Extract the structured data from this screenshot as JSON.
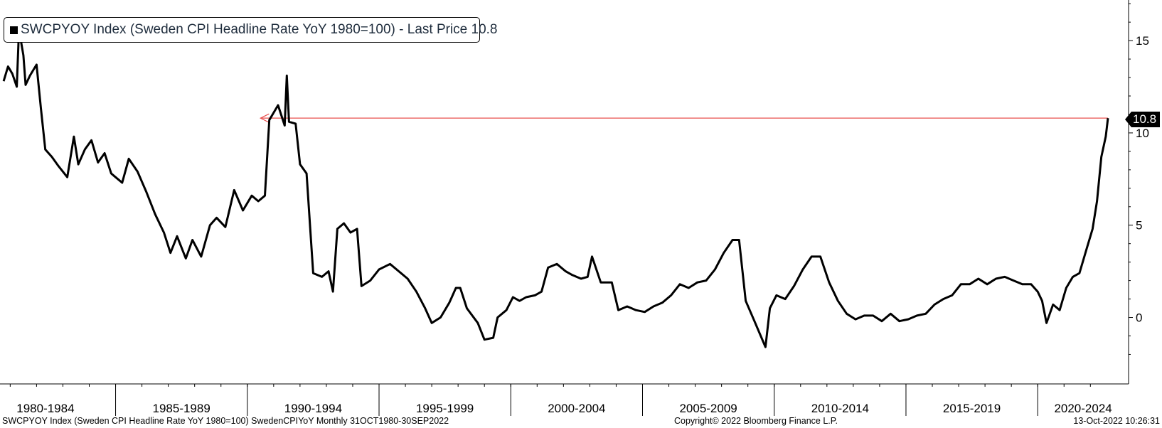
{
  "legend": {
    "text": "SWCPYOY Index (Sweden CPI Headline Rate YoY 1980=100) - Last Price 10.8"
  },
  "footer": {
    "left": "SWCPYOY Index (Sweden CPI Headline Rate YoY 1980=100) SwedenCPIYoY  Monthly 31OCT1980-30SEP2022",
    "center": "Copyright© 2022 Bloomberg Finance L.P.",
    "right": "13-Oct-2022 10:26:31"
  },
  "last_price_label": "10.8",
  "colors": {
    "series": "#000000",
    "reference_line": "#e8504f",
    "axis": "#000000"
  },
  "chart_data": {
    "type": "line",
    "title": "SWCPYOY Index (Sweden CPI Headline Rate YoY 1980=100) - Last Price 10.8",
    "ylim": [
      -3.6,
      17.2
    ],
    "y_ticks": [
      0,
      5,
      10,
      15
    ],
    "y_axis_position": "right",
    "x_range": [
      "1980-10",
      "2022-09"
    ],
    "x_period_labels": [
      "1980-1984",
      "1985-1989",
      "1990-1994",
      "1995-1999",
      "2000-2004",
      "2005-2009",
      "2010-2014",
      "2015-2019",
      "2020-2024"
    ],
    "grid": false,
    "legend_position": "top-left",
    "last_value": 10.8,
    "reference_line": {
      "from": "1990-07",
      "to": "2022-09",
      "value": 10.8,
      "color": "#e8504f"
    },
    "series": [
      {
        "name": "SWCPYOY Index",
        "color": "#000000",
        "points": [
          [
            "1980-10",
            12.8
          ],
          [
            "1980-12",
            13.6
          ],
          [
            "1981-02",
            13.2
          ],
          [
            "1981-04",
            12.5
          ],
          [
            "1981-05",
            15.6
          ],
          [
            "1981-07",
            14.2
          ],
          [
            "1981-08",
            12.6
          ],
          [
            "1981-10",
            13.1
          ],
          [
            "1982-01",
            13.7
          ],
          [
            "1982-03",
            11.3
          ],
          [
            "1982-05",
            9.1
          ],
          [
            "1982-08",
            8.7
          ],
          [
            "1982-11",
            8.2
          ],
          [
            "1983-03",
            7.6
          ],
          [
            "1983-06",
            9.8
          ],
          [
            "1983-08",
            8.3
          ],
          [
            "1983-11",
            9.1
          ],
          [
            "1984-02",
            9.6
          ],
          [
            "1984-05",
            8.4
          ],
          [
            "1984-08",
            8.9
          ],
          [
            "1984-11",
            7.8
          ],
          [
            "1985-01",
            7.6
          ],
          [
            "1985-04",
            7.3
          ],
          [
            "1985-07",
            8.6
          ],
          [
            "1985-11",
            7.9
          ],
          [
            "1986-03",
            6.8
          ],
          [
            "1986-07",
            5.6
          ],
          [
            "1986-11",
            4.6
          ],
          [
            "1987-02",
            3.5
          ],
          [
            "1987-05",
            4.4
          ],
          [
            "1987-09",
            3.2
          ],
          [
            "1987-12",
            4.2
          ],
          [
            "1988-04",
            3.3
          ],
          [
            "1988-08",
            5.0
          ],
          [
            "1988-11",
            5.4
          ],
          [
            "1989-03",
            4.9
          ],
          [
            "1989-07",
            6.9
          ],
          [
            "1989-11",
            5.8
          ],
          [
            "1990-03",
            6.6
          ],
          [
            "1990-06",
            6.3
          ],
          [
            "1990-09",
            6.6
          ],
          [
            "1990-11",
            10.7
          ],
          [
            "1991-03",
            11.5
          ],
          [
            "1991-06",
            10.4
          ],
          [
            "1991-07",
            13.1
          ],
          [
            "1991-08",
            10.6
          ],
          [
            "1991-11",
            10.5
          ],
          [
            "1992-01",
            8.3
          ],
          [
            "1992-04",
            7.8
          ],
          [
            "1992-07",
            2.4
          ],
          [
            "1992-11",
            2.2
          ],
          [
            "1993-02",
            2.5
          ],
          [
            "1993-04",
            1.4
          ],
          [
            "1993-06",
            4.8
          ],
          [
            "1993-09",
            5.1
          ],
          [
            "1993-12",
            4.6
          ],
          [
            "1994-03",
            4.8
          ],
          [
            "1994-05",
            1.7
          ],
          [
            "1994-09",
            2.0
          ],
          [
            "1995-01",
            2.6
          ],
          [
            "1995-06",
            2.9
          ],
          [
            "1995-10",
            2.5
          ],
          [
            "1996-02",
            2.1
          ],
          [
            "1996-06",
            1.4
          ],
          [
            "1996-10",
            0.5
          ],
          [
            "1997-01",
            -0.3
          ],
          [
            "1997-05",
            0.0
          ],
          [
            "1997-09",
            0.8
          ],
          [
            "1997-12",
            1.6
          ],
          [
            "1998-02",
            1.6
          ],
          [
            "1998-05",
            0.5
          ],
          [
            "1998-10",
            -0.3
          ],
          [
            "1999-01",
            -1.2
          ],
          [
            "1999-05",
            -1.1
          ],
          [
            "1999-07",
            0.0
          ],
          [
            "1999-11",
            0.4
          ],
          [
            "2000-02",
            1.1
          ],
          [
            "2000-05",
            0.9
          ],
          [
            "2000-08",
            1.1
          ],
          [
            "2000-12",
            1.2
          ],
          [
            "2001-03",
            1.4
          ],
          [
            "2001-06",
            2.7
          ],
          [
            "2001-10",
            2.9
          ],
          [
            "2002-02",
            2.5
          ],
          [
            "2002-05",
            2.3
          ],
          [
            "2002-09",
            2.1
          ],
          [
            "2002-12",
            2.2
          ],
          [
            "2003-02",
            3.3
          ],
          [
            "2003-06",
            1.9
          ],
          [
            "2003-11",
            1.9
          ],
          [
            "2004-02",
            0.4
          ],
          [
            "2004-06",
            0.6
          ],
          [
            "2004-10",
            0.4
          ],
          [
            "2005-02",
            0.3
          ],
          [
            "2005-06",
            0.6
          ],
          [
            "2005-10",
            0.8
          ],
          [
            "2006-02",
            1.2
          ],
          [
            "2006-06",
            1.8
          ],
          [
            "2006-10",
            1.6
          ],
          [
            "2007-02",
            1.9
          ],
          [
            "2007-06",
            2.0
          ],
          [
            "2007-10",
            2.6
          ],
          [
            "2008-02",
            3.5
          ],
          [
            "2008-06",
            4.2
          ],
          [
            "2008-09",
            4.2
          ],
          [
            "2008-12",
            0.9
          ],
          [
            "2009-04",
            -0.2
          ],
          [
            "2009-09",
            -1.6
          ],
          [
            "2009-11",
            0.5
          ],
          [
            "2010-02",
            1.2
          ],
          [
            "2010-06",
            1.0
          ],
          [
            "2010-10",
            1.7
          ],
          [
            "2011-02",
            2.6
          ],
          [
            "2011-06",
            3.3
          ],
          [
            "2011-10",
            3.3
          ],
          [
            "2012-02",
            1.9
          ],
          [
            "2012-06",
            0.9
          ],
          [
            "2012-10",
            0.2
          ],
          [
            "2013-02",
            -0.1
          ],
          [
            "2013-06",
            0.1
          ],
          [
            "2013-10",
            0.1
          ],
          [
            "2014-02",
            -0.2
          ],
          [
            "2014-06",
            0.2
          ],
          [
            "2014-10",
            -0.2
          ],
          [
            "2015-02",
            -0.1
          ],
          [
            "2015-06",
            0.1
          ],
          [
            "2015-10",
            0.2
          ],
          [
            "2016-02",
            0.7
          ],
          [
            "2016-06",
            1.0
          ],
          [
            "2016-10",
            1.2
          ],
          [
            "2017-02",
            1.8
          ],
          [
            "2017-06",
            1.8
          ],
          [
            "2017-10",
            2.1
          ],
          [
            "2018-02",
            1.8
          ],
          [
            "2018-06",
            2.1
          ],
          [
            "2018-10",
            2.2
          ],
          [
            "2019-02",
            2.0
          ],
          [
            "2019-06",
            1.8
          ],
          [
            "2019-10",
            1.8
          ],
          [
            "2020-01",
            1.4
          ],
          [
            "2020-03",
            0.9
          ],
          [
            "2020-05",
            -0.3
          ],
          [
            "2020-08",
            0.7
          ],
          [
            "2020-11",
            0.4
          ],
          [
            "2021-02",
            1.6
          ],
          [
            "2021-05",
            2.2
          ],
          [
            "2021-08",
            2.4
          ],
          [
            "2021-11",
            3.6
          ],
          [
            "2022-02",
            4.8
          ],
          [
            "2022-04",
            6.3
          ],
          [
            "2022-06",
            8.7
          ],
          [
            "2022-08",
            9.8
          ],
          [
            "2022-09",
            10.8
          ]
        ]
      }
    ]
  }
}
